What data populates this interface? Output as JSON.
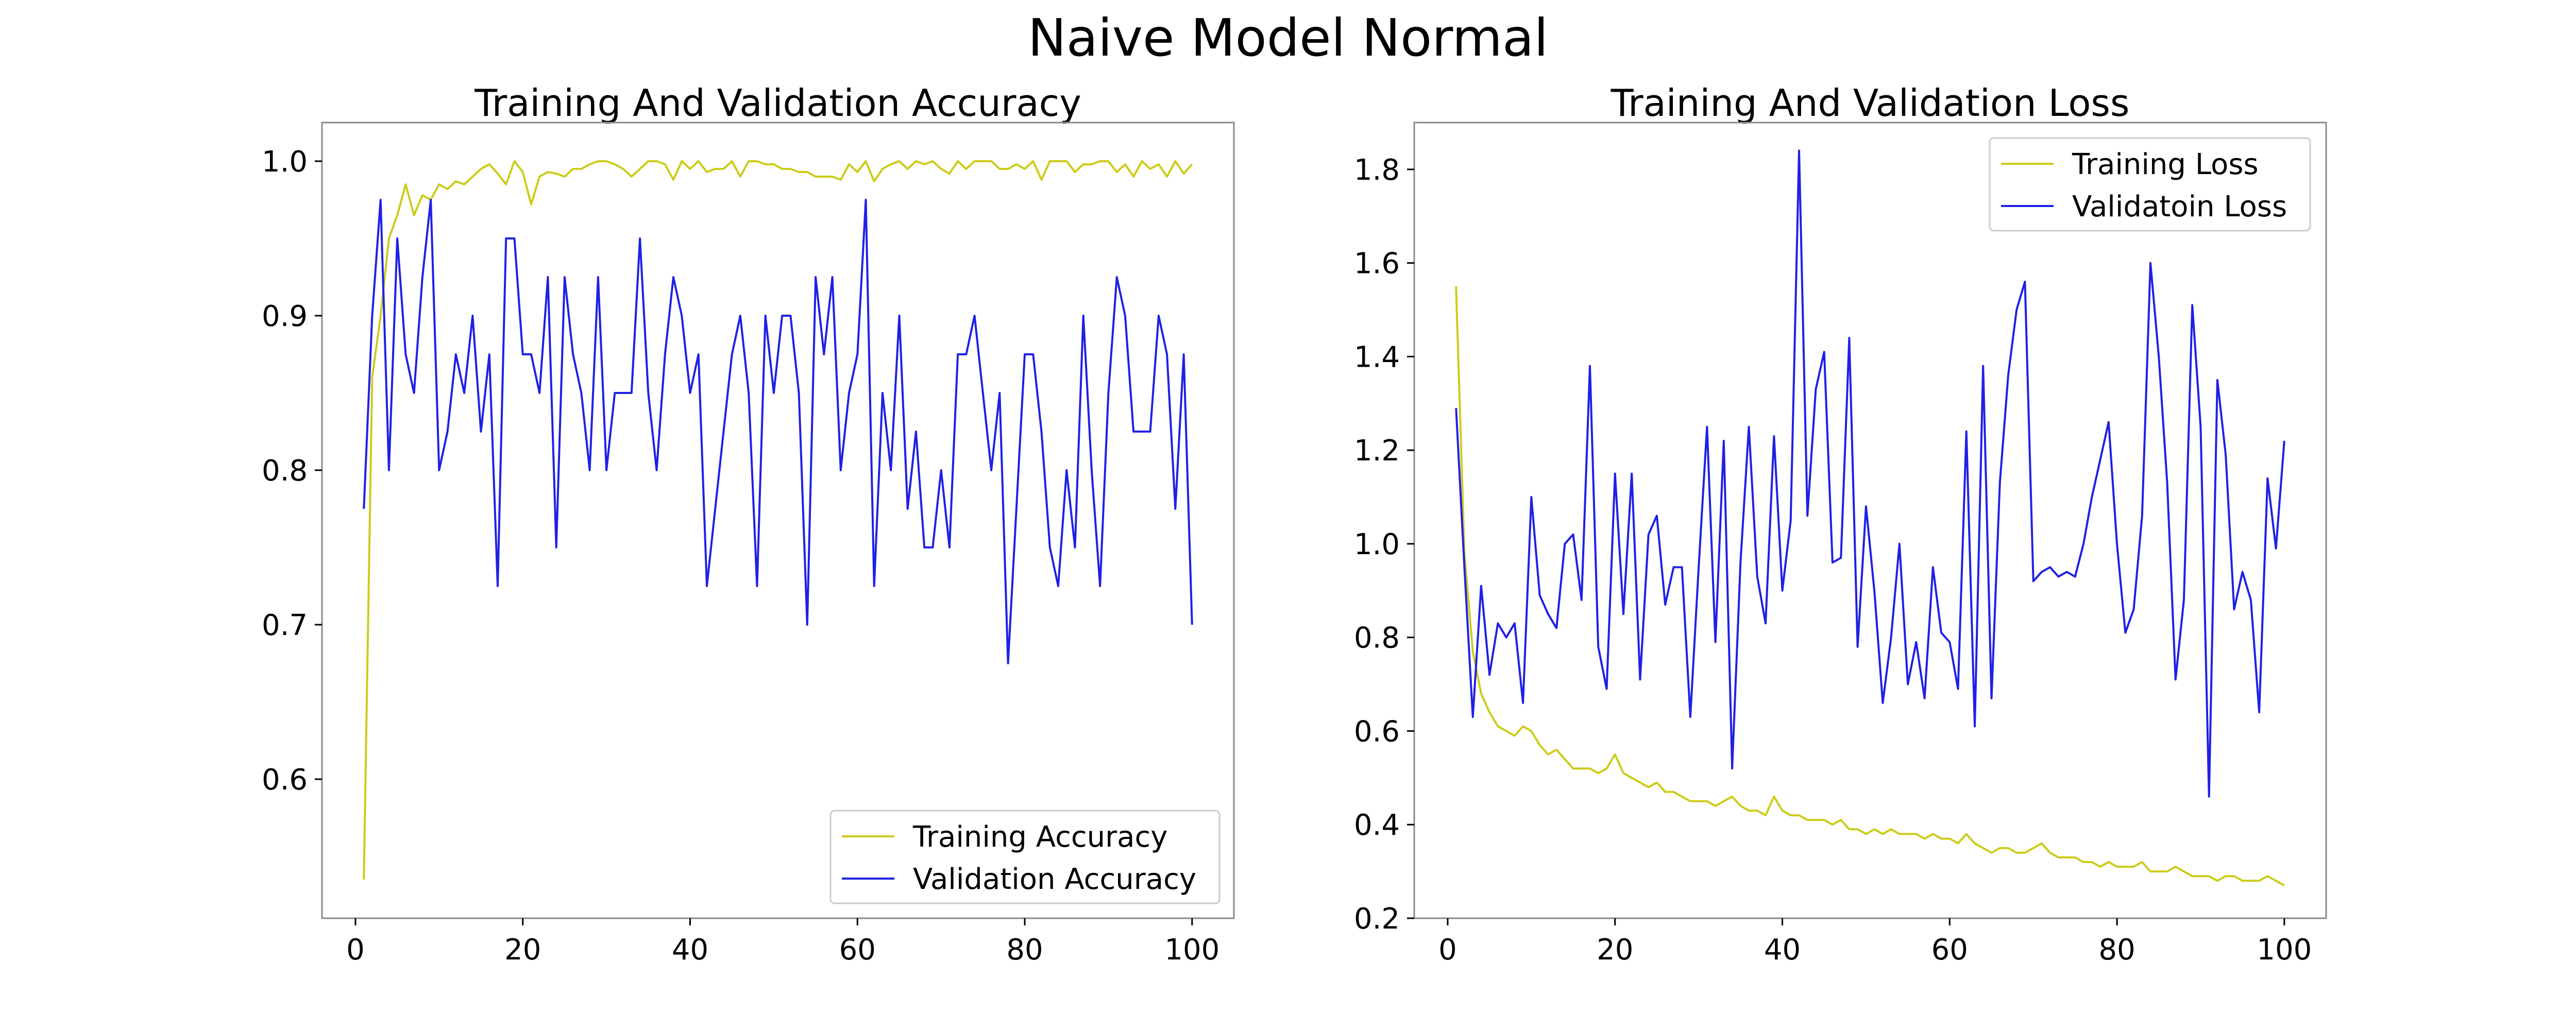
{
  "title": "Naive Model Normal",
  "colors": {
    "training": "#cccc1a",
    "validation": "#2020e6",
    "frame": "#8a8a8a"
  },
  "chart_data": [
    {
      "type": "line",
      "title": "Training And Validation Accuracy",
      "xlabel": "",
      "ylabel": "",
      "xlim": [
        -4,
        105
      ],
      "ylim": [
        0.51,
        1.025
      ],
      "xticks": [
        0,
        20,
        40,
        60,
        80,
        100
      ],
      "yticks": [
        0.6,
        0.7,
        0.8,
        0.9,
        1.0
      ],
      "ytick_labels": [
        "0.6",
        "0.7",
        "0.8",
        "0.9",
        "1.0"
      ],
      "grid": false,
      "legend_position": "lower right",
      "series": [
        {
          "name": "Training Accuracy",
          "color_key": "training",
          "x_start": 1,
          "values": [
            0.535,
            0.86,
            0.9,
            0.95,
            0.965,
            0.985,
            0.965,
            0.978,
            0.975,
            0.985,
            0.982,
            0.987,
            0.985,
            0.99,
            0.995,
            0.998,
            0.992,
            0.985,
            1.0,
            0.993,
            0.972,
            0.99,
            0.993,
            0.992,
            0.99,
            0.995,
            0.995,
            0.998,
            1.0,
            1.0,
            0.998,
            0.995,
            0.99,
            0.995,
            1.0,
            1.0,
            0.998,
            0.988,
            1.0,
            0.995,
            1.0,
            0.993,
            0.995,
            0.995,
            1.0,
            0.99,
            1.0,
            1.0,
            0.998,
            0.998,
            0.995,
            0.995,
            0.993,
            0.993,
            0.99,
            0.99,
            0.99,
            0.988,
            0.998,
            0.993,
            1.0,
            0.987,
            0.995,
            0.998,
            1.0,
            0.995,
            1.0,
            0.998,
            1.0,
            0.995,
            0.992,
            1.0,
            0.995,
            1.0,
            1.0,
            1.0,
            0.995,
            0.995,
            0.998,
            0.995,
            1.0,
            0.988,
            1.0,
            1.0,
            1.0,
            0.993,
            0.998,
            0.998,
            1.0,
            1.0,
            0.993,
            0.998,
            0.99,
            1.0,
            0.995,
            0.998,
            0.99,
            1.0,
            0.992,
            0.998
          ]
        },
        {
          "name": "Validation Accuracy",
          "color_key": "validation",
          "x_start": 1,
          "values": [
            0.775,
            0.9,
            0.975,
            0.8,
            0.95,
            0.875,
            0.85,
            0.925,
            0.975,
            0.8,
            0.825,
            0.875,
            0.85,
            0.9,
            0.825,
            0.875,
            0.725,
            0.95,
            0.95,
            0.875,
            0.875,
            0.85,
            0.925,
            0.75,
            0.925,
            0.875,
            0.85,
            0.8,
            0.925,
            0.8,
            0.85,
            0.85,
            0.85,
            0.95,
            0.85,
            0.8,
            0.875,
            0.925,
            0.9,
            0.85,
            0.875,
            0.725,
            0.775,
            0.825,
            0.875,
            0.9,
            0.85,
            0.725,
            0.9,
            0.85,
            0.9,
            0.9,
            0.85,
            0.7,
            0.925,
            0.875,
            0.925,
            0.8,
            0.85,
            0.875,
            0.975,
            0.725,
            0.85,
            0.8,
            0.9,
            0.775,
            0.825,
            0.75,
            0.75,
            0.8,
            0.75,
            0.875,
            0.875,
            0.9,
            0.85,
            0.8,
            0.85,
            0.675,
            0.775,
            0.875,
            0.875,
            0.825,
            0.75,
            0.725,
            0.8,
            0.75,
            0.9,
            0.8,
            0.725,
            0.85,
            0.925,
            0.9,
            0.825,
            0.825,
            0.825,
            0.9,
            0.875,
            0.775,
            0.875,
            0.7
          ]
        }
      ]
    },
    {
      "type": "line",
      "title": "Training And Validation Loss",
      "xlabel": "",
      "ylabel": "",
      "xlim": [
        -4,
        105
      ],
      "ylim": [
        0.2,
        1.9
      ],
      "xticks": [
        0,
        20,
        40,
        60,
        80,
        100
      ],
      "yticks": [
        0.2,
        0.4,
        0.6,
        0.8,
        1.0,
        1.2,
        1.4,
        1.6,
        1.8
      ],
      "ytick_labels": [
        "0.2",
        "0.4",
        "0.6",
        "0.8",
        "1.0",
        "1.2",
        "1.4",
        "1.6",
        "1.8"
      ],
      "grid": false,
      "legend_position": "upper right",
      "series": [
        {
          "name": "Training Loss",
          "color_key": "training",
          "x_start": 1,
          "values": [
            1.55,
            0.98,
            0.77,
            0.68,
            0.64,
            0.61,
            0.6,
            0.59,
            0.61,
            0.6,
            0.57,
            0.55,
            0.56,
            0.54,
            0.52,
            0.52,
            0.52,
            0.51,
            0.52,
            0.55,
            0.51,
            0.5,
            0.49,
            0.48,
            0.49,
            0.47,
            0.47,
            0.46,
            0.45,
            0.45,
            0.45,
            0.44,
            0.45,
            0.46,
            0.44,
            0.43,
            0.43,
            0.42,
            0.46,
            0.43,
            0.42,
            0.42,
            0.41,
            0.41,
            0.41,
            0.4,
            0.41,
            0.39,
            0.39,
            0.38,
            0.39,
            0.38,
            0.39,
            0.38,
            0.38,
            0.38,
            0.37,
            0.38,
            0.37,
            0.37,
            0.36,
            0.38,
            0.36,
            0.35,
            0.34,
            0.35,
            0.35,
            0.34,
            0.34,
            0.35,
            0.36,
            0.34,
            0.33,
            0.33,
            0.33,
            0.32,
            0.32,
            0.31,
            0.32,
            0.31,
            0.31,
            0.31,
            0.32,
            0.3,
            0.3,
            0.3,
            0.31,
            0.3,
            0.29,
            0.29,
            0.29,
            0.28,
            0.29,
            0.29,
            0.28,
            0.28,
            0.28,
            0.29,
            0.28,
            0.27
          ]
        },
        {
          "name": "Validatoin Loss",
          "color_key": "validation",
          "x_start": 1,
          "values": [
            1.29,
            0.95,
            0.63,
            0.91,
            0.72,
            0.83,
            0.8,
            0.83,
            0.66,
            1.1,
            0.89,
            0.85,
            0.82,
            1.0,
            1.02,
            0.88,
            1.38,
            0.78,
            0.69,
            1.15,
            0.85,
            1.15,
            0.71,
            1.02,
            1.06,
            0.87,
            0.95,
            0.95,
            0.63,
            0.95,
            1.25,
            0.79,
            1.22,
            0.52,
            0.96,
            1.25,
            0.93,
            0.83,
            1.23,
            0.9,
            1.05,
            1.84,
            1.06,
            1.33,
            1.41,
            0.96,
            0.97,
            1.44,
            0.78,
            1.08,
            0.9,
            0.66,
            0.8,
            1.0,
            0.7,
            0.79,
            0.67,
            0.95,
            0.81,
            0.79,
            0.69,
            1.24,
            0.61,
            1.38,
            0.67,
            1.13,
            1.36,
            1.5,
            1.56,
            0.92,
            0.94,
            0.95,
            0.93,
            0.94,
            0.93,
            1.0,
            1.1,
            1.18,
            1.26,
            1.0,
            0.81,
            0.86,
            1.06,
            1.6,
            1.4,
            1.13,
            0.71,
            0.88,
            1.51,
            1.25,
            0.46,
            1.35,
            1.19,
            0.86,
            0.94,
            0.88,
            0.64,
            1.14,
            0.99,
            1.22
          ]
        }
      ]
    }
  ]
}
